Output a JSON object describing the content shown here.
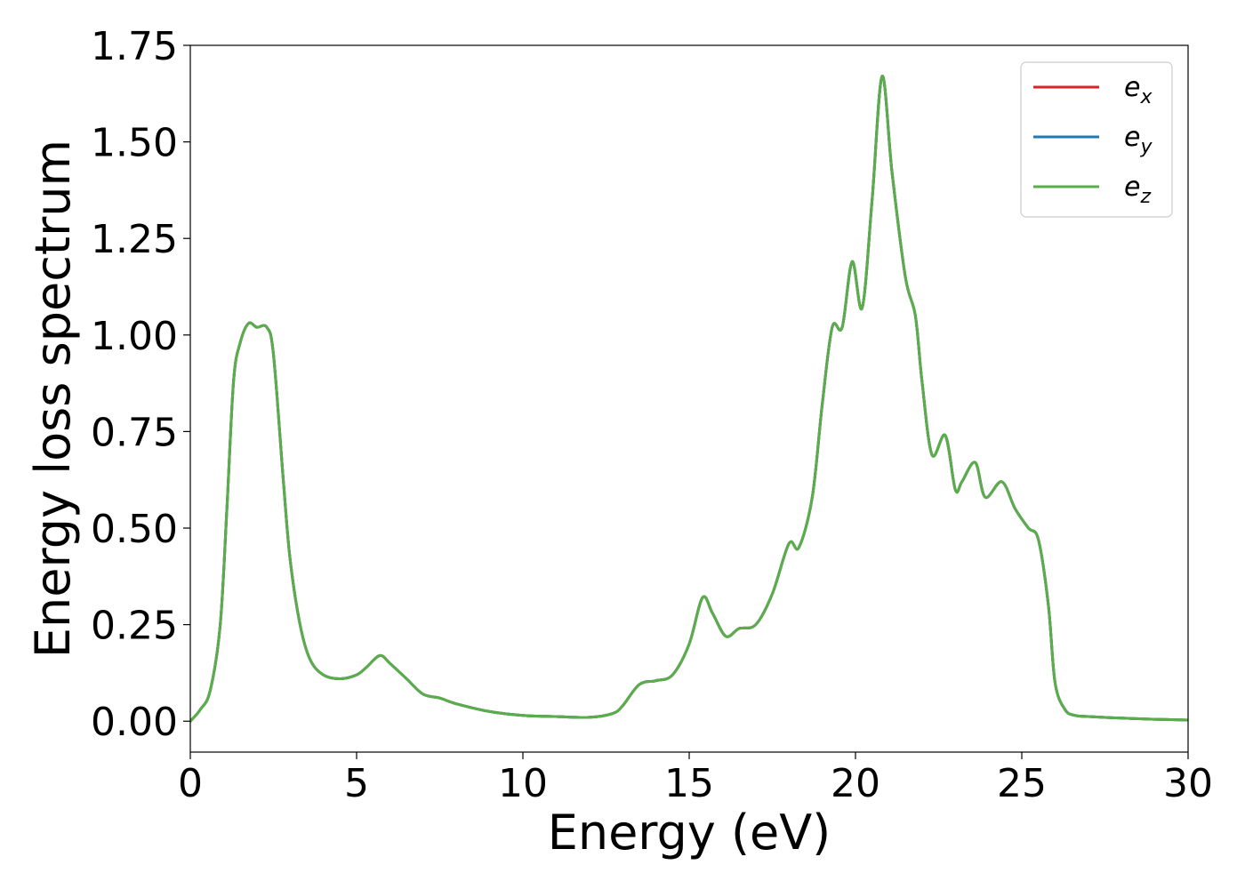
{
  "chart_data": {
    "type": "line",
    "xlabel": "Energy (eV)",
    "ylabel": "Energy loss spectrum",
    "xlim": [
      0,
      30
    ],
    "ylim": [
      -0.08,
      1.75
    ],
    "xticks": [
      0,
      5,
      10,
      15,
      20,
      25,
      30
    ],
    "xtick_labels": [
      "0",
      "5",
      "10",
      "15",
      "20",
      "25",
      "30"
    ],
    "yticks": [
      0.0,
      0.25,
      0.5,
      0.75,
      1.0,
      1.25,
      1.5,
      1.75
    ],
    "ytick_labels": [
      "0.00",
      "0.25",
      "0.50",
      "0.75",
      "1.00",
      "1.25",
      "1.50",
      "1.75"
    ],
    "grid": false,
    "legend_position": "top-right",
    "x": [
      0,
      0.3,
      0.6,
      0.9,
      1.1,
      1.3,
      1.5,
      1.75,
      2.0,
      2.3,
      2.5,
      2.8,
      3.0,
      3.3,
      3.6,
      4.0,
      4.5,
      5.0,
      5.3,
      5.7,
      6.0,
      6.5,
      7.0,
      7.5,
      8.0,
      9.0,
      10.0,
      11.0,
      12.0,
      12.7,
      13.0,
      13.5,
      14.0,
      14.5,
      15.0,
      15.4,
      15.7,
      16.1,
      16.5,
      17.0,
      17.5,
      18.0,
      18.3,
      18.7,
      19.0,
      19.3,
      19.6,
      19.9,
      20.2,
      20.5,
      20.8,
      21.1,
      21.5,
      21.8,
      22.0,
      22.3,
      22.7,
      23.0,
      23.2,
      23.6,
      23.9,
      24.4,
      24.8,
      25.2,
      25.5,
      25.8,
      26.0,
      26.3,
      26.6,
      27.0,
      28.0,
      29.0,
      30.0
    ],
    "series": [
      {
        "name": "x",
        "color": "#d62728",
        "values": [
          0.0,
          0.03,
          0.08,
          0.25,
          0.55,
          0.88,
          0.98,
          1.03,
          1.02,
          1.02,
          0.95,
          0.62,
          0.42,
          0.25,
          0.16,
          0.12,
          0.11,
          0.12,
          0.14,
          0.17,
          0.15,
          0.11,
          0.07,
          0.06,
          0.045,
          0.025,
          0.015,
          0.012,
          0.01,
          0.02,
          0.04,
          0.095,
          0.105,
          0.12,
          0.2,
          0.32,
          0.28,
          0.22,
          0.24,
          0.25,
          0.33,
          0.46,
          0.45,
          0.58,
          0.82,
          1.02,
          1.02,
          1.19,
          1.07,
          1.35,
          1.67,
          1.42,
          1.15,
          1.05,
          0.88,
          0.69,
          0.74,
          0.6,
          0.62,
          0.67,
          0.58,
          0.62,
          0.55,
          0.5,
          0.47,
          0.3,
          0.1,
          0.03,
          0.015,
          0.012,
          0.008,
          0.005,
          0.003
        ]
      },
      {
        "name": "y",
        "color": "#1f77b4",
        "values": [
          0.0,
          0.03,
          0.08,
          0.25,
          0.55,
          0.88,
          0.98,
          1.03,
          1.02,
          1.02,
          0.95,
          0.62,
          0.42,
          0.25,
          0.16,
          0.12,
          0.11,
          0.12,
          0.14,
          0.17,
          0.15,
          0.11,
          0.07,
          0.06,
          0.045,
          0.025,
          0.015,
          0.012,
          0.01,
          0.02,
          0.04,
          0.095,
          0.105,
          0.12,
          0.2,
          0.32,
          0.28,
          0.22,
          0.24,
          0.25,
          0.33,
          0.46,
          0.45,
          0.58,
          0.82,
          1.02,
          1.02,
          1.19,
          1.07,
          1.35,
          1.67,
          1.42,
          1.15,
          1.05,
          0.88,
          0.69,
          0.74,
          0.6,
          0.62,
          0.67,
          0.58,
          0.62,
          0.55,
          0.5,
          0.47,
          0.3,
          0.1,
          0.03,
          0.015,
          0.012,
          0.008,
          0.005,
          0.003
        ]
      },
      {
        "name": "z",
        "color": "#5aae4a",
        "values": [
          0.0,
          0.03,
          0.08,
          0.25,
          0.55,
          0.88,
          0.98,
          1.03,
          1.02,
          1.02,
          0.95,
          0.62,
          0.42,
          0.25,
          0.16,
          0.12,
          0.11,
          0.12,
          0.14,
          0.17,
          0.15,
          0.11,
          0.07,
          0.06,
          0.045,
          0.025,
          0.015,
          0.012,
          0.01,
          0.02,
          0.04,
          0.095,
          0.105,
          0.12,
          0.2,
          0.32,
          0.28,
          0.22,
          0.24,
          0.25,
          0.33,
          0.46,
          0.45,
          0.58,
          0.82,
          1.02,
          1.02,
          1.19,
          1.07,
          1.35,
          1.67,
          1.42,
          1.15,
          1.05,
          0.88,
          0.69,
          0.74,
          0.6,
          0.62,
          0.67,
          0.58,
          0.62,
          0.55,
          0.5,
          0.47,
          0.3,
          0.1,
          0.03,
          0.015,
          0.012,
          0.008,
          0.005,
          0.003
        ]
      }
    ],
    "legend_prefix": "e"
  }
}
